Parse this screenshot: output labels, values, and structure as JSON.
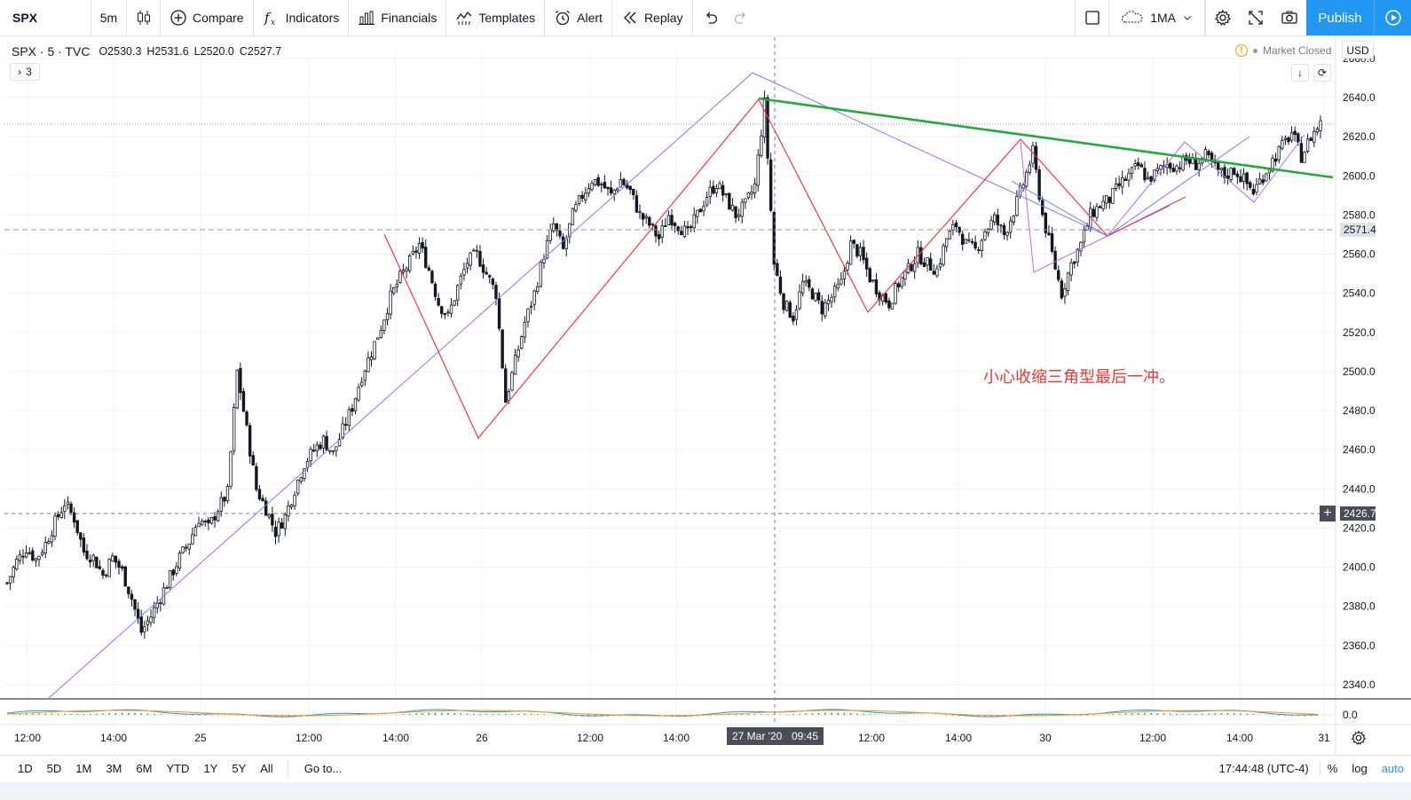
{
  "toolbar": {
    "symbol": "SPX",
    "interval": "5m",
    "compare": "Compare",
    "indicators": "Indicators",
    "financials": "Financials",
    "templates": "Templates",
    "alert": "Alert",
    "replay": "Replay",
    "layout": "1MA",
    "publish": "Publish",
    "icons": [
      "candles-icon",
      "plus-circle-icon",
      "fx-icon",
      "financials-icon",
      "templates-icon",
      "alarm-clock-icon",
      "replay-icon",
      "undo-icon",
      "redo-icon",
      "layout-square-icon",
      "cloud-icon",
      "gear-icon",
      "fullscreen-icon",
      "camera-icon",
      "play-icon"
    ]
  },
  "legend": {
    "title": "SPX · 5 · TVC",
    "open": "O2530.3",
    "high": "H2531.6",
    "low": "L2520.0",
    "close": "C2527.7",
    "collapsed_count": "3"
  },
  "status": {
    "market": "Market Closed",
    "currency": "USD"
  },
  "annotation": "小心收缩三角型最后一冲。",
  "price_tags": {
    "level_line": "2571.4",
    "crosshair": "2426.7"
  },
  "crosshair_time": {
    "date": "27 Mar '20",
    "time": "09:45"
  },
  "bottom": {
    "ranges": [
      "1D",
      "5D",
      "1M",
      "3M",
      "6M",
      "YTD",
      "1Y",
      "5Y",
      "All"
    ],
    "goto": "Go to...",
    "clock": "17:44:48 (UTC-4)",
    "percent": "%",
    "log": "log",
    "auto": "auto"
  },
  "colors": {
    "up": "#ffffff",
    "down": "#131722",
    "zigzag_red": "#f23645",
    "zigzag_blue": "#7b7bff",
    "zigzag_purple": "#b46cf0",
    "trendline_green": "#22ab3a",
    "accent": "#2196f3",
    "macd": "#2196f3",
    "signal": "#ff9800"
  },
  "chart_data": {
    "type": "candlestick",
    "symbol": "SPX",
    "interval": "5",
    "x_tick_labels": [
      "12:00",
      "14:00",
      "25",
      "12:00",
      "14:00",
      "26",
      "12:00",
      "14:00",
      "12:00",
      "14:00",
      "30",
      "12:00",
      "14:00",
      "31"
    ],
    "y_tick_labels": [
      "2340.0",
      "2360.0",
      "2380.0",
      "2400.0",
      "2420.0",
      "2440.0",
      "2460.0",
      "2480.0",
      "2500.0",
      "2520.0",
      "2540.0",
      "2560.0",
      "2580.0",
      "2600.0",
      "2620.0",
      "2640.0",
      "2660.0"
    ],
    "ylim": [
      2330,
      2665
    ],
    "close_path": [
      [
        0,
        2392
      ],
      [
        3,
        2403
      ],
      [
        6,
        2410
      ],
      [
        9,
        2404
      ],
      [
        12,
        2412
      ],
      [
        15,
        2423
      ],
      [
        18,
        2433
      ],
      [
        21,
        2425
      ],
      [
        24,
        2408
      ],
      [
        27,
        2405
      ],
      [
        30,
        2396
      ],
      [
        33,
        2405
      ],
      [
        36,
        2398
      ],
      [
        39,
        2384
      ],
      [
        42,
        2367
      ],
      [
        45,
        2375
      ],
      [
        48,
        2385
      ],
      [
        51,
        2395
      ],
      [
        54,
        2405
      ],
      [
        57,
        2413
      ],
      [
        60,
        2425
      ],
      [
        63,
        2420
      ],
      [
        66,
        2430
      ],
      [
        69,
        2438
      ],
      [
        72,
        2500
      ],
      [
        75,
        2470
      ],
      [
        78,
        2440
      ],
      [
        81,
        2430
      ],
      [
        84,
        2418
      ],
      [
        87,
        2426
      ],
      [
        90,
        2440
      ],
      [
        93,
        2453
      ],
      [
        96,
        2460
      ],
      [
        99,
        2465
      ],
      [
        102,
        2458
      ],
      [
        105,
        2470
      ],
      [
        108,
        2482
      ],
      [
        111,
        2498
      ],
      [
        114,
        2510
      ],
      [
        117,
        2523
      ],
      [
        120,
        2538
      ],
      [
        123,
        2548
      ],
      [
        126,
        2556
      ],
      [
        129,
        2565
      ],
      [
        132,
        2552
      ],
      [
        135,
        2535
      ],
      [
        138,
        2528
      ],
      [
        141,
        2543
      ],
      [
        144,
        2556
      ],
      [
        147,
        2560
      ],
      [
        150,
        2550
      ],
      [
        153,
        2540
      ],
      [
        156,
        2485
      ],
      [
        159,
        2505
      ],
      [
        162,
        2525
      ],
      [
        165,
        2540
      ],
      [
        168,
        2560
      ],
      [
        171,
        2575
      ],
      [
        174,
        2562
      ],
      [
        177,
        2580
      ],
      [
        180,
        2590
      ],
      [
        183,
        2598
      ],
      [
        186,
        2596
      ],
      [
        189,
        2590
      ],
      [
        192,
        2598
      ],
      [
        195,
        2592
      ],
      [
        198,
        2580
      ],
      [
        201,
        2575
      ],
      [
        204,
        2568
      ],
      [
        207,
        2580
      ],
      [
        210,
        2575
      ],
      [
        213,
        2570
      ],
      [
        216,
        2580
      ],
      [
        219,
        2590
      ],
      [
        222,
        2596
      ],
      [
        225,
        2588
      ],
      [
        228,
        2580
      ],
      [
        231,
        2585
      ],
      [
        234,
        2595
      ],
      [
        237,
        2637
      ],
      [
        240,
        2555
      ],
      [
        243,
        2535
      ],
      [
        246,
        2528
      ],
      [
        249,
        2545
      ],
      [
        252,
        2540
      ],
      [
        255,
        2532
      ],
      [
        258,
        2538
      ],
      [
        261,
        2545
      ],
      [
        264,
        2565
      ],
      [
        267,
        2560
      ],
      [
        270,
        2548
      ],
      [
        273,
        2540
      ],
      [
        276,
        2535
      ],
      [
        279,
        2545
      ],
      [
        282,
        2552
      ],
      [
        285,
        2560
      ],
      [
        288,
        2555
      ],
      [
        291,
        2552
      ],
      [
        294,
        2568
      ],
      [
        297,
        2575
      ],
      [
        300,
        2565
      ],
      [
        303,
        2562
      ],
      [
        306,
        2572
      ],
      [
        309,
        2578
      ],
      [
        312,
        2570
      ],
      [
        315,
        2582
      ],
      [
        318,
        2596
      ],
      [
        321,
        2612
      ],
      [
        324,
        2580
      ],
      [
        327,
        2560
      ],
      [
        330,
        2540
      ],
      [
        333,
        2555
      ],
      [
        336,
        2565
      ],
      [
        339,
        2580
      ],
      [
        342,
        2585
      ],
      [
        345,
        2588
      ],
      [
        348,
        2595
      ],
      [
        351,
        2600
      ],
      [
        354,
        2605
      ],
      [
        357,
        2598
      ],
      [
        360,
        2602
      ],
      [
        363,
        2606
      ],
      [
        366,
        2605
      ],
      [
        369,
        2608
      ],
      [
        372,
        2606
      ],
      [
        375,
        2610
      ],
      [
        378,
        2604
      ],
      [
        381,
        2600
      ],
      [
        384,
        2603
      ],
      [
        387,
        2598
      ],
      [
        390,
        2592
      ],
      [
        393,
        2600
      ],
      [
        396,
        2608
      ],
      [
        399,
        2615
      ],
      [
        402,
        2622
      ],
      [
        405,
        2610
      ],
      [
        408,
        2620
      ],
      [
        411,
        2627
      ]
    ],
    "macd_panel": {
      "zero_label": "0.0"
    }
  }
}
